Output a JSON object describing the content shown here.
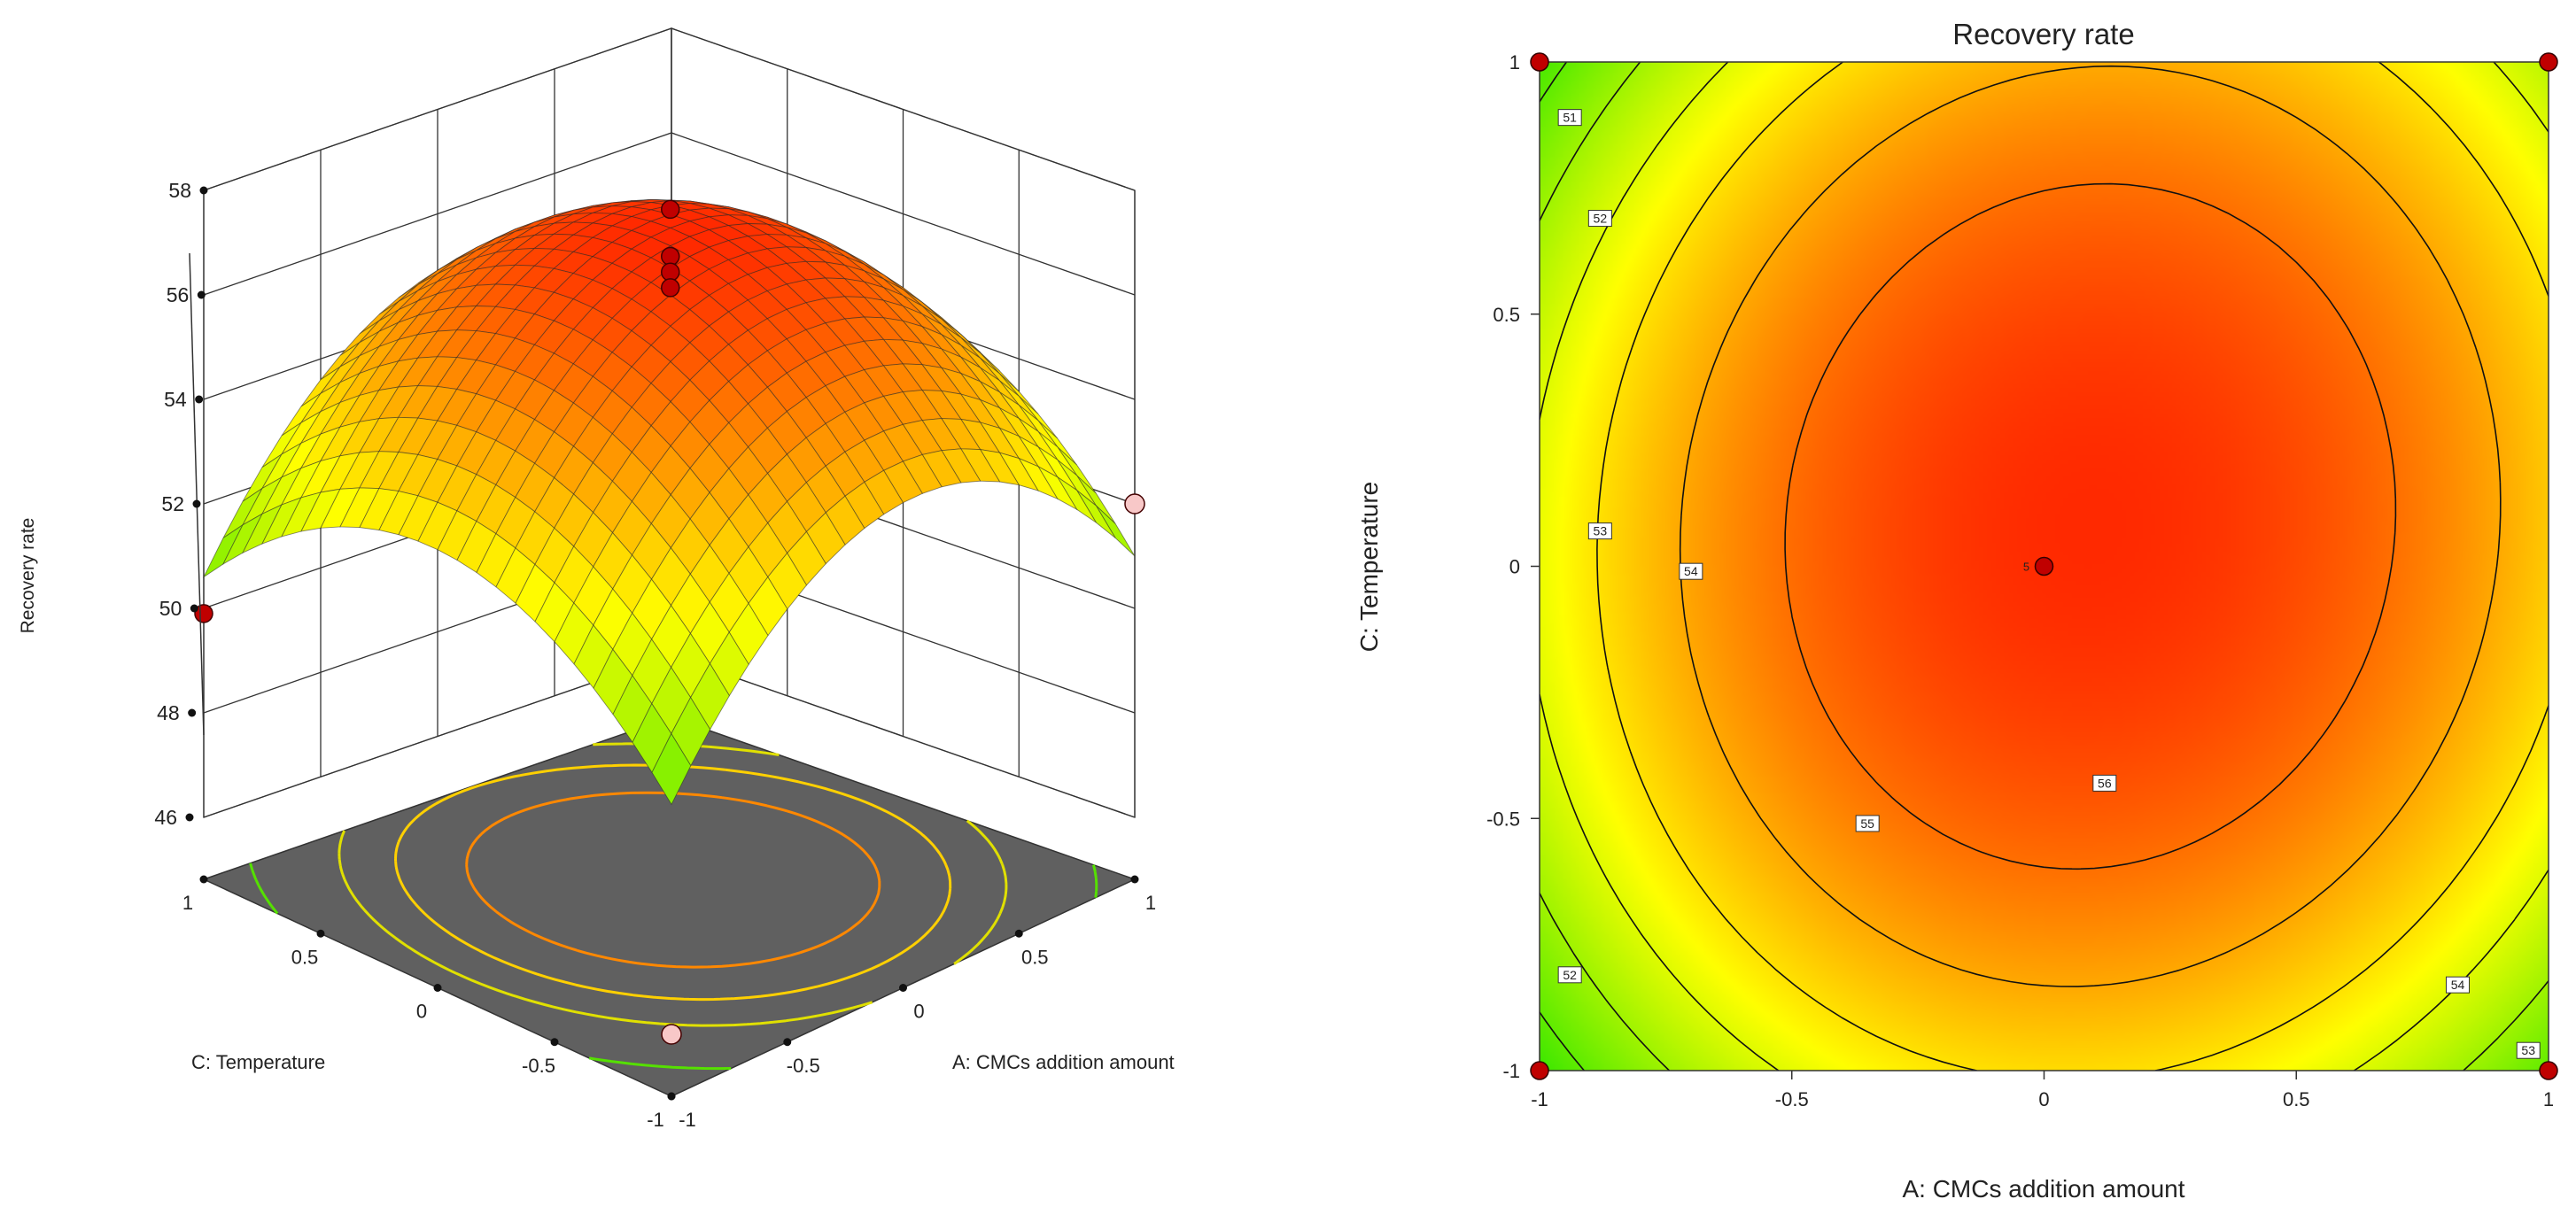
{
  "chart_data": [
    {
      "type": "surface3d",
      "zlabel": "Recovery rate",
      "xlabel": "A: CMCs addition amount",
      "ylabel": "C: Temperature",
      "x_range": [
        -1,
        1
      ],
      "y_range": [
        -1,
        1
      ],
      "zlim": [
        46,
        58
      ],
      "z_ticks": [
        "46",
        "48",
        "50",
        "52",
        "54",
        "56",
        "58"
      ],
      "x_ticks": [
        "-1",
        "-0.5",
        "0",
        "0.5",
        "1"
      ],
      "y_ticks": [
        "-1",
        "-0.5",
        "0",
        "0.5",
        "1"
      ],
      "model": {
        "c": 57.2,
        "a": 0.6,
        "b": 0.4,
        "ab": 0.3,
        "aa": -3.4,
        "bb": -2.7
      },
      "design_points": [
        {
          "x": -1,
          "y": 1,
          "z": 49.9,
          "above": true
        },
        {
          "x": 1,
          "y": -1,
          "z": 52.0,
          "above": false
        },
        {
          "x": 0,
          "y": 0,
          "z": 57.9,
          "above": true
        },
        {
          "x": 0,
          "y": 0,
          "z": 57.0,
          "above": true
        },
        {
          "x": 0,
          "y": 0,
          "z": 56.7,
          "above": true
        },
        {
          "x": 0,
          "y": 0,
          "z": 56.4,
          "above": true
        },
        {
          "x": -1,
          "y": -1,
          "z": 46.0,
          "above": false
        }
      ],
      "colors": {
        "high": "#ff1a00",
        "mid": "#ffff00",
        "low": "#00e000",
        "floor": "#606060"
      }
    },
    {
      "type": "contour",
      "title": "Recovery rate",
      "xlabel": "A: CMCs addition amount",
      "ylabel": "C: Temperature",
      "xlim": [
        -1,
        1
      ],
      "ylim": [
        -1,
        1
      ],
      "x_ticks": [
        "-1",
        "-0.5",
        "0",
        "0.5",
        "1"
      ],
      "y_ticks": [
        "-1",
        "-0.5",
        "0",
        "0.5",
        "1"
      ],
      "contour_levels": [
        51,
        52,
        53,
        54,
        55,
        56
      ],
      "contour_labels": [
        {
          "text": "51",
          "x": -0.94,
          "y": 0.89
        },
        {
          "text": "52",
          "x": -0.88,
          "y": 0.69
        },
        {
          "text": "53",
          "x": -0.88,
          "y": 0.07
        },
        {
          "text": "54",
          "x": -0.7,
          "y": -0.01
        },
        {
          "text": "55",
          "x": -0.35,
          "y": -0.51
        },
        {
          "text": "56",
          "x": 0.12,
          "y": -0.43
        },
        {
          "text": "52",
          "x": -0.94,
          "y": -0.81
        },
        {
          "text": "54",
          "x": 0.82,
          "y": -0.83
        },
        {
          "text": "53",
          "x": 0.96,
          "y": -0.96
        }
      ],
      "center_label": "5",
      "design_points": [
        {
          "x": -1,
          "y": 1
        },
        {
          "x": 1,
          "y": 1
        },
        {
          "x": -1,
          "y": -1
        },
        {
          "x": 1,
          "y": -1
        },
        {
          "x": 0,
          "y": 0
        }
      ]
    }
  ]
}
